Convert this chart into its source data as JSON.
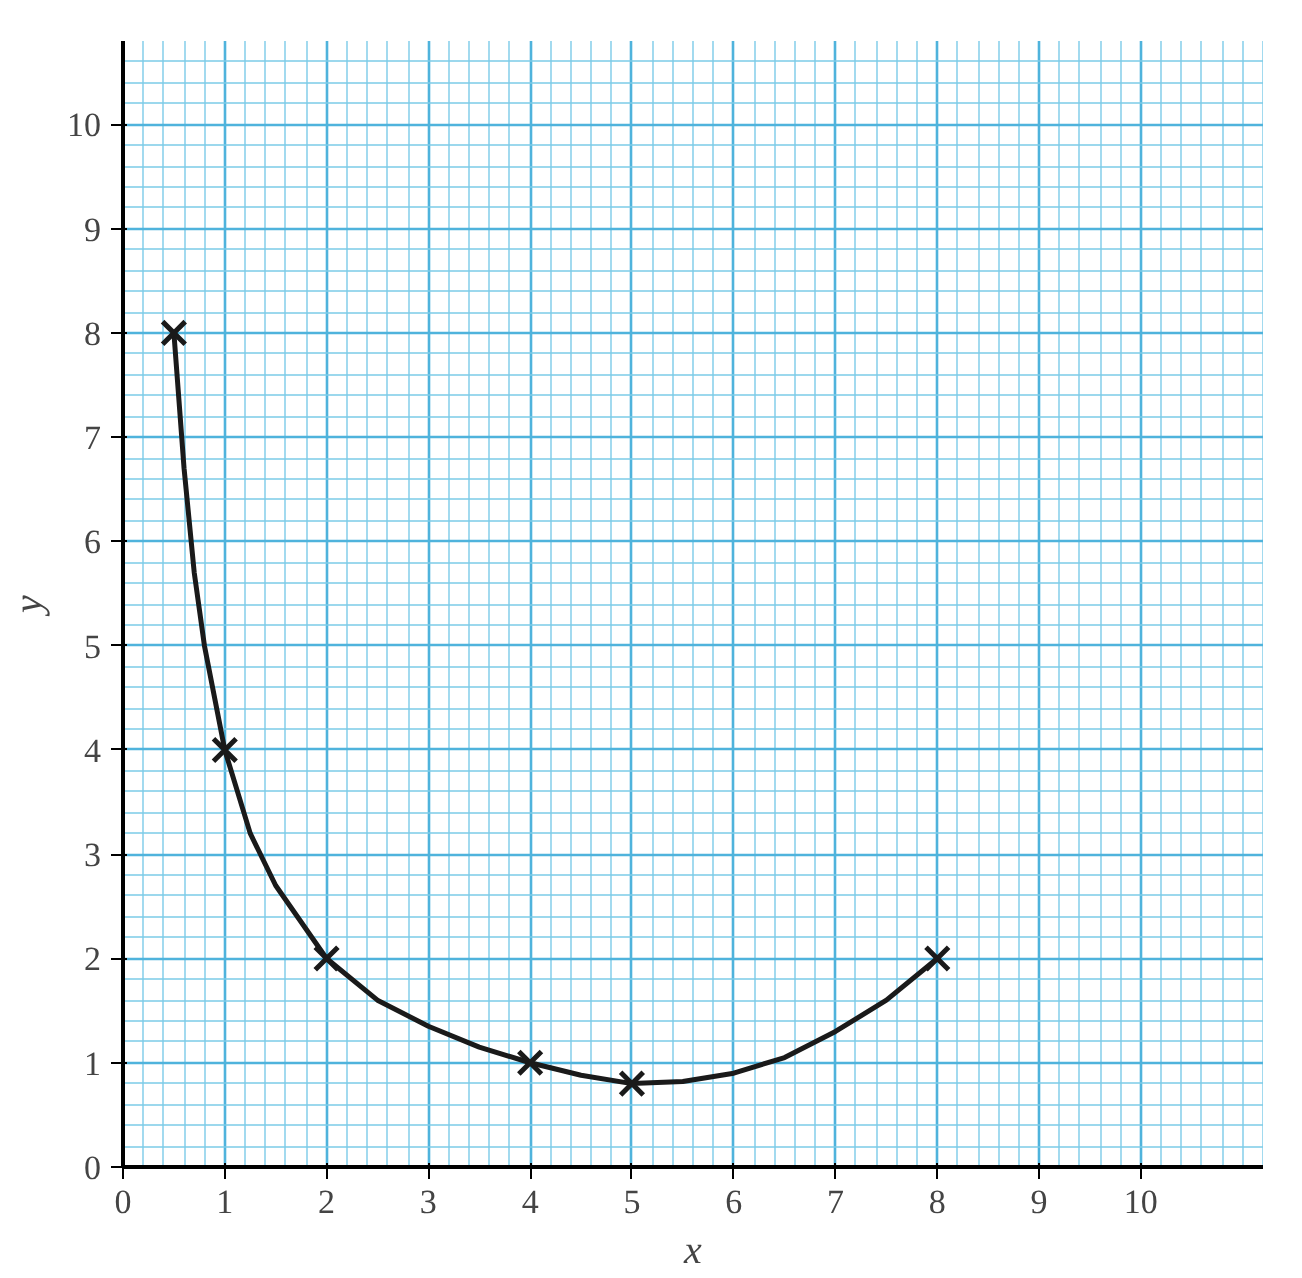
{
  "chart_data": {
    "type": "scatter",
    "xlabel": "x",
    "ylabel": "y",
    "xlim": [
      0,
      11.2
    ],
    "ylim": [
      0,
      10.8
    ],
    "xticks": [
      0,
      1,
      2,
      3,
      4,
      5,
      6,
      7,
      8,
      9,
      10
    ],
    "yticks": [
      0,
      1,
      2,
      3,
      4,
      5,
      6,
      7,
      8,
      9,
      10
    ],
    "grid": true,
    "series": [
      {
        "type": "line",
        "color": "#1a1a1a",
        "line_style": "solid",
        "marker": "none",
        "x": [
          0.5,
          0.6,
          0.7,
          0.8,
          1,
          1.25,
          1.5,
          2,
          2.5,
          3,
          3.5,
          4,
          4.5,
          5,
          5.5,
          6,
          6.5,
          7,
          7.5,
          8
        ],
        "values": [
          8,
          6.7,
          5.7,
          5.0,
          4,
          3.2,
          2.7,
          2,
          1.6,
          1.35,
          1.15,
          1,
          0.88,
          0.8,
          0.82,
          0.9,
          1.05,
          1.3,
          1.6,
          2
        ]
      },
      {
        "type": "scatter",
        "color": "#1a1a1a",
        "marker": "cross",
        "x": [
          0.5,
          1,
          2,
          4,
          5,
          8
        ],
        "values": [
          8,
          4,
          2,
          1,
          0.8,
          2
        ]
      }
    ]
  }
}
